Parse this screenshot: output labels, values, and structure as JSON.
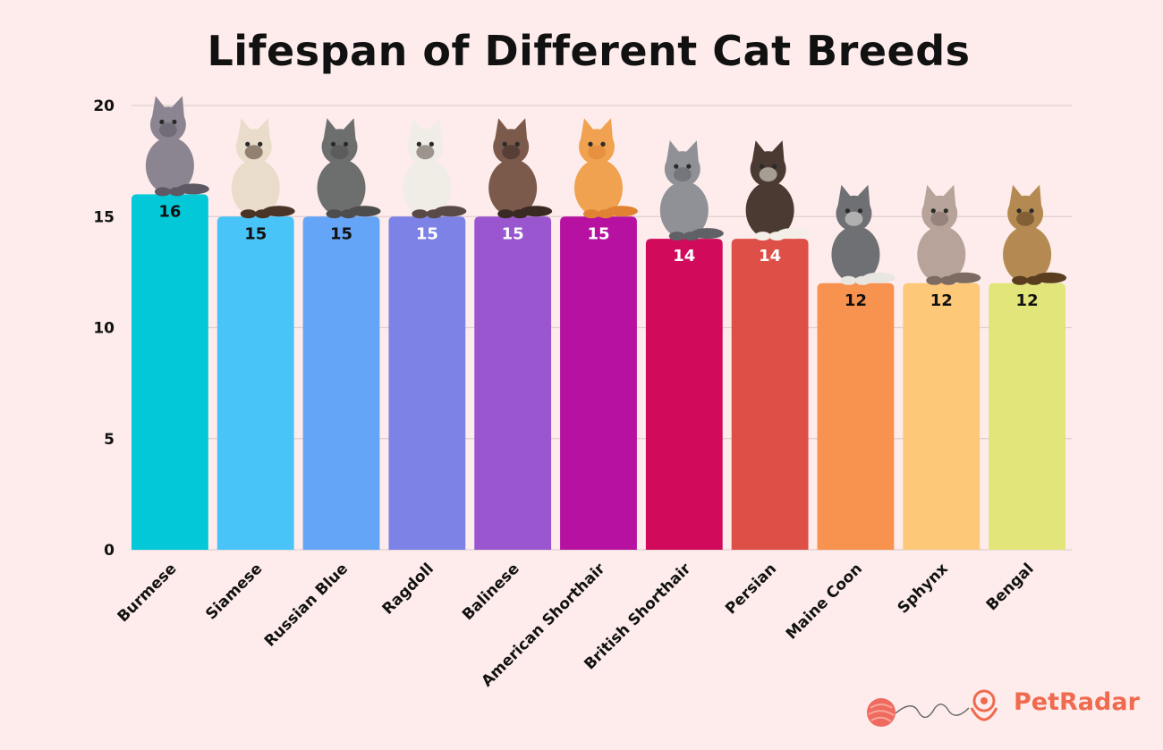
{
  "chart_data": {
    "type": "bar",
    "title": "Lifespan of Different Cat Breeds",
    "categories": [
      "Burmese",
      "Siamese",
      "Russian Blue",
      "Ragdoll",
      "Balinese",
      "American Shorthair",
      "British Shorthair",
      "Persian",
      "Maine Coon",
      "Sphynx",
      "Bengal"
    ],
    "values": [
      16,
      15,
      15,
      15,
      15,
      15,
      14,
      14,
      12,
      12,
      12
    ],
    "colors": [
      "#02c8d8",
      "#48c4f8",
      "#64a5f8",
      "#7c82e6",
      "#9a56cf",
      "#b611a1",
      "#d10a5c",
      "#dd4f47",
      "#f7924f",
      "#fdc878",
      "#e2e57a"
    ],
    "value_label_colors": [
      "#111111",
      "#111111",
      "#111111",
      "#ffffff",
      "#ffffff",
      "#ffffff",
      "#ffffff",
      "#ffffff",
      "#111111",
      "#111111",
      "#111111"
    ],
    "ylim": [
      0,
      20
    ],
    "yticks": [
      0,
      5,
      10,
      15,
      20
    ],
    "xlabel": "",
    "ylabel": "",
    "grid": true,
    "decoration": "cat-photo-on-each-bar"
  },
  "branding": {
    "logo_text": "PetRadar",
    "logo_icon": "yarn-ball-heart-icon"
  }
}
